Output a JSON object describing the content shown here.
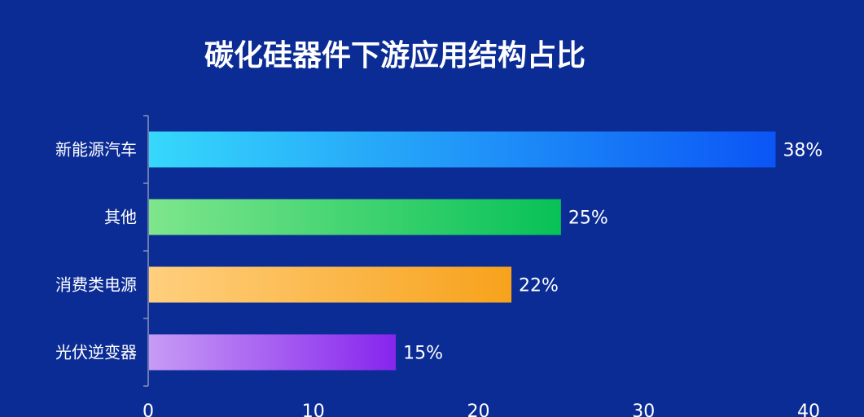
{
  "chart_data": {
    "type": "bar",
    "orientation": "horizontal",
    "title": "碳化硅器件下游应用结构占比",
    "categories": [
      "新能源汽车",
      "其他",
      "消费类电源",
      "光伏逆变器"
    ],
    "values": [
      38,
      25,
      22,
      15
    ],
    "data_labels": [
      "38%",
      "25%",
      "22%",
      "15%"
    ],
    "xlim": [
      0,
      40
    ],
    "xticks": [
      "0",
      "10",
      "20",
      "30",
      "40"
    ],
    "grid": false,
    "background": "#0b2c95",
    "bar_gradients": [
      [
        "#36d8fb",
        "#0b55f5"
      ],
      [
        "#7ee68c",
        "#07c157"
      ],
      [
        "#ffcf7e",
        "#f7a21b"
      ],
      [
        "#c79bf5",
        "#8625ee"
      ]
    ]
  }
}
